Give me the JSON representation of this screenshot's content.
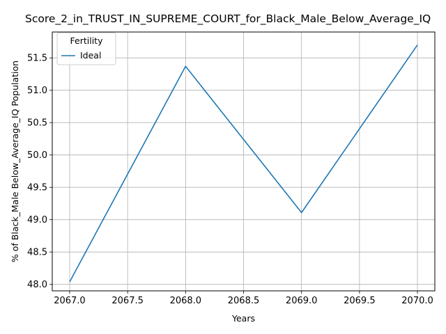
{
  "chart_data": {
    "type": "line",
    "title": "Score_2_in_TRUST_IN_SUPREME_COURT_for_Black_Male_Below_Average_IQ",
    "xlabel": "Years",
    "ylabel": "% of Black_Male Below_Average_IQ Population",
    "x": [
      2067.0,
      2068.0,
      2069.0,
      2070.0
    ],
    "xlim": [
      2066.85,
      2070.15
    ],
    "ylim": [
      47.9,
      51.9
    ],
    "x_ticks": [
      2067.0,
      2067.5,
      2068.0,
      2068.5,
      2069.0,
      2069.5,
      2070.0
    ],
    "x_tick_labels": [
      "2067.0",
      "2067.5",
      "2068.0",
      "2068.5",
      "2069.0",
      "2069.5",
      "2070.0"
    ],
    "y_ticks": [
      48.0,
      48.5,
      49.0,
      49.5,
      50.0,
      50.5,
      51.0,
      51.5
    ],
    "y_tick_labels": [
      "48.0",
      "48.5",
      "49.0",
      "49.5",
      "50.0",
      "50.5",
      "51.0",
      "51.5"
    ],
    "grid": true,
    "legend": {
      "title": "Fertility",
      "placement": "top-left"
    },
    "series": [
      {
        "name": "Ideal",
        "color": "#1f77b4",
        "values": [
          48.04,
          51.37,
          49.11,
          51.7
        ]
      }
    ]
  }
}
